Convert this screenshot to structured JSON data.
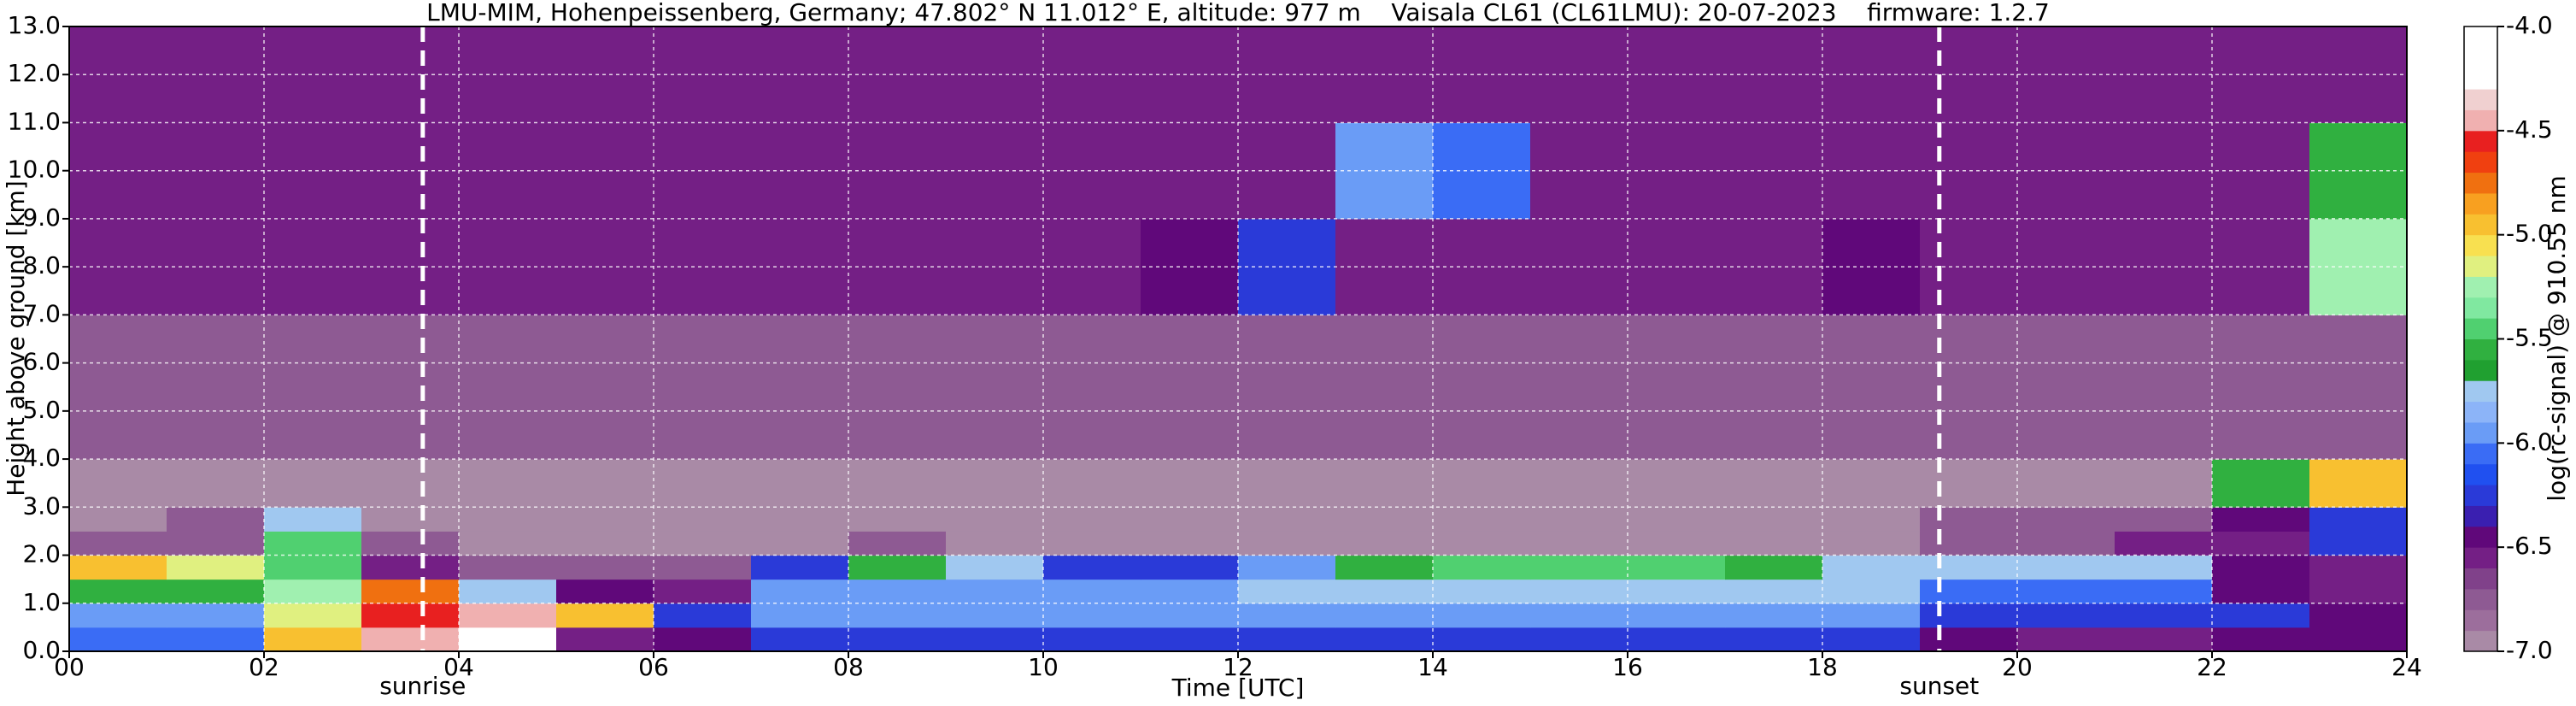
{
  "chart_data": {
    "type": "heatmap",
    "title": "LMU-MIM, Hohenpeissenberg, Germany; 47.802° N 11.012° E, altitude: 977 m    Vaisala CL61 (CL61LMU): 20-07-2023    firmware: 1.2.7",
    "xlabel": "Time [UTC]",
    "ylabel": "Height above ground [km]",
    "colorbar_label": "log(rc-signal) @ 910.55 nm",
    "x_edges": [
      0,
      1,
      2,
      3,
      4,
      5,
      6,
      7,
      8,
      9,
      10,
      11,
      12,
      13,
      14,
      15,
      16,
      17,
      18,
      19,
      20,
      21,
      22,
      23,
      24
    ],
    "y_edges": [
      0,
      0.5,
      1,
      1.5,
      2,
      2.5,
      3,
      4,
      5,
      7,
      9,
      11,
      13
    ],
    "z": [
      [
        -6.1,
        -6.1,
        -5.0,
        -4.5,
        -4.3,
        -6.6,
        -6.4,
        -6.2,
        -6.2,
        -6.2,
        -6.2,
        -6.2,
        -6.3,
        -6.3,
        -6.3,
        -6.3,
        -6.3,
        -6.3,
        -6.3,
        -6.5,
        -6.6,
        -6.6,
        -6.5,
        -6.4
      ],
      [
        -6.0,
        -6.0,
        -5.2,
        -4.6,
        -4.4,
        -5.0,
        -6.2,
        -6.0,
        -6.0,
        -6.0,
        -6.0,
        -6.0,
        -6.0,
        -6.0,
        -6.0,
        -6.0,
        -6.0,
        -6.0,
        -6.0,
        -6.2,
        -6.2,
        -6.2,
        -6.3,
        -6.5
      ],
      [
        -5.6,
        -5.6,
        -5.3,
        -4.8,
        -5.8,
        -6.5,
        -6.6,
        -6.0,
        -5.9,
        -5.9,
        -5.9,
        -5.9,
        -5.8,
        -5.8,
        -5.7,
        -5.7,
        -5.7,
        -5.7,
        -5.8,
        -6.1,
        -6.1,
        -6.1,
        -6.4,
        -6.6
      ],
      [
        -5.0,
        -5.2,
        -5.4,
        -6.6,
        -6.8,
        -6.8,
        -6.7,
        -6.3,
        -5.6,
        -5.8,
        -6.3,
        -6.3,
        -5.9,
        -5.6,
        -5.5,
        -5.5,
        -5.5,
        -5.6,
        -5.8,
        -5.8,
        -5.7,
        -5.7,
        -6.4,
        -6.6
      ],
      [
        -6.8,
        -6.8,
        -5.4,
        -6.8,
        -6.9,
        -6.9,
        -6.9,
        -6.9,
        -6.8,
        -6.9,
        -6.9,
        -6.9,
        -6.9,
        -6.9,
        -6.9,
        -6.9,
        -6.9,
        -6.9,
        -6.9,
        -6.7,
        -6.7,
        -6.6,
        -6.6,
        -6.3
      ],
      [
        -6.9,
        -6.8,
        -5.8,
        -6.9,
        -6.9,
        -6.9,
        -6.9,
        -6.9,
        -6.9,
        -6.9,
        -6.9,
        -6.9,
        -6.9,
        -6.9,
        -6.9,
        -6.9,
        -6.9,
        -6.9,
        -6.9,
        -6.8,
        -6.8,
        -6.7,
        -6.4,
        -6.2
      ],
      [
        -6.9,
        -6.9,
        -6.9,
        -6.9,
        -6.9,
        -6.9,
        -6.9,
        -6.9,
        -6.9,
        -6.9,
        -6.9,
        -6.9,
        -6.9,
        -6.9,
        -6.9,
        -6.9,
        -6.9,
        -6.9,
        -6.9,
        -6.9,
        -6.9,
        -6.9,
        -5.6,
        -5.0
      ],
      [
        -6.8,
        -6.8,
        -6.8,
        -6.8,
        -6.8,
        -6.8,
        -6.8,
        -6.8,
        -6.8,
        -6.8,
        -6.8,
        -6.8,
        -6.8,
        -6.8,
        -6.8,
        -6.8,
        -6.8,
        -6.8,
        -6.8,
        -6.8,
        -6.8,
        -6.8,
        -6.8,
        -6.8
      ],
      [
        -6.7,
        -6.7,
        -6.7,
        -6.7,
        -6.7,
        -6.7,
        -6.7,
        -6.7,
        -6.7,
        -6.7,
        -6.7,
        -6.7,
        -6.7,
        -6.7,
        -6.7,
        -6.7,
        -6.7,
        -6.7,
        -6.7,
        -6.7,
        -6.7,
        -6.7,
        -6.7,
        -6.7
      ],
      [
        -6.6,
        -6.6,
        -6.6,
        -6.6,
        -6.6,
        -6.6,
        -6.6,
        -6.6,
        -6.6,
        -6.6,
        -6.6,
        -6.4,
        -6.3,
        -6.6,
        -6.6,
        -6.6,
        -6.6,
        -6.6,
        -6.4,
        -6.6,
        -6.6,
        -6.6,
        -6.6,
        -5.3
      ],
      [
        -6.6,
        -6.6,
        -6.6,
        -6.6,
        -6.6,
        -6.6,
        -6.6,
        -6.6,
        -6.6,
        -6.6,
        -6.6,
        -6.6,
        -6.6,
        -6.0,
        -6.1,
        -6.6,
        -6.6,
        -6.6,
        -6.6,
        -6.6,
        -6.6,
        -6.6,
        -6.6,
        -5.6
      ],
      [
        -6.6,
        -6.6,
        -6.6,
        -6.6,
        -6.6,
        -6.6,
        -6.6,
        -6.6,
        -6.6,
        -6.6,
        -6.6,
        -6.6,
        -6.6,
        -6.6,
        -6.6,
        -6.6,
        -6.6,
        -6.6,
        -6.6,
        -6.6,
        -6.6,
        -6.6,
        -6.6,
        -6.6
      ]
    ],
    "xlim": [
      0,
      24
    ],
    "ylim": [
      0,
      13
    ],
    "xticks": [
      {
        "value": 0,
        "label": "00"
      },
      {
        "value": 2,
        "label": "02"
      },
      {
        "value": 4,
        "label": "04"
      },
      {
        "value": 6,
        "label": "06"
      },
      {
        "value": 8,
        "label": "08"
      },
      10,
      12,
      14,
      16,
      18,
      20,
      22,
      24
    ],
    "yticks": [
      {
        "value": 0,
        "label": "0.0"
      },
      {
        "value": 1,
        "label": "1.0"
      },
      {
        "value": 2,
        "label": "2.0"
      },
      {
        "value": 3,
        "label": "3.0"
      },
      {
        "value": 4,
        "label": "4.0"
      },
      {
        "value": 5,
        "label": "5.0"
      },
      {
        "value": 6,
        "label": "6.0"
      },
      {
        "value": 7,
        "label": "7.0"
      },
      {
        "value": 8,
        "label": "8.0"
      },
      {
        "value": 9,
        "label": "9.0"
      },
      {
        "value": 10,
        "label": "10.0"
      },
      {
        "value": 11,
        "label": "11.0"
      },
      {
        "value": 12,
        "label": "12.0"
      },
      {
        "value": 13,
        "label": "13.0"
      }
    ],
    "clim": [
      -7,
      -4
    ],
    "cticks": [
      {
        "value": -7,
        "label": "-7.0"
      },
      -6.5,
      {
        "value": -6,
        "label": "-6.0"
      },
      -5.5,
      {
        "value": -5,
        "label": "-5.0"
      },
      -4.5,
      {
        "value": -4,
        "label": "-4.0"
      }
    ],
    "colormap": [
      "#a98aa6",
      "#9c6e9c",
      "#8e5a93",
      "#80418a",
      "#741f85",
      "#60087a",
      "#3a1fb0",
      "#2a3ad8",
      "#2050f0",
      "#3a6cf5",
      "#6a9cf6",
      "#8cb4f8",
      "#a0c8f0",
      "#20a030",
      "#30b040",
      "#50d070",
      "#80e8a0",
      "#a0f0b0",
      "#e0f080",
      "#f8e050",
      "#f8c030",
      "#f8a020",
      "#f07010",
      "#f04010",
      "#e82020",
      "#f0b0b0",
      "#f0d0d0",
      "#ffffff",
      "#ffffff",
      "#ffffff"
    ],
    "grid": true,
    "annotations": [
      {
        "x": 3.63,
        "label": "sunrise"
      },
      {
        "x": 19.2,
        "label": "sunset"
      }
    ]
  }
}
